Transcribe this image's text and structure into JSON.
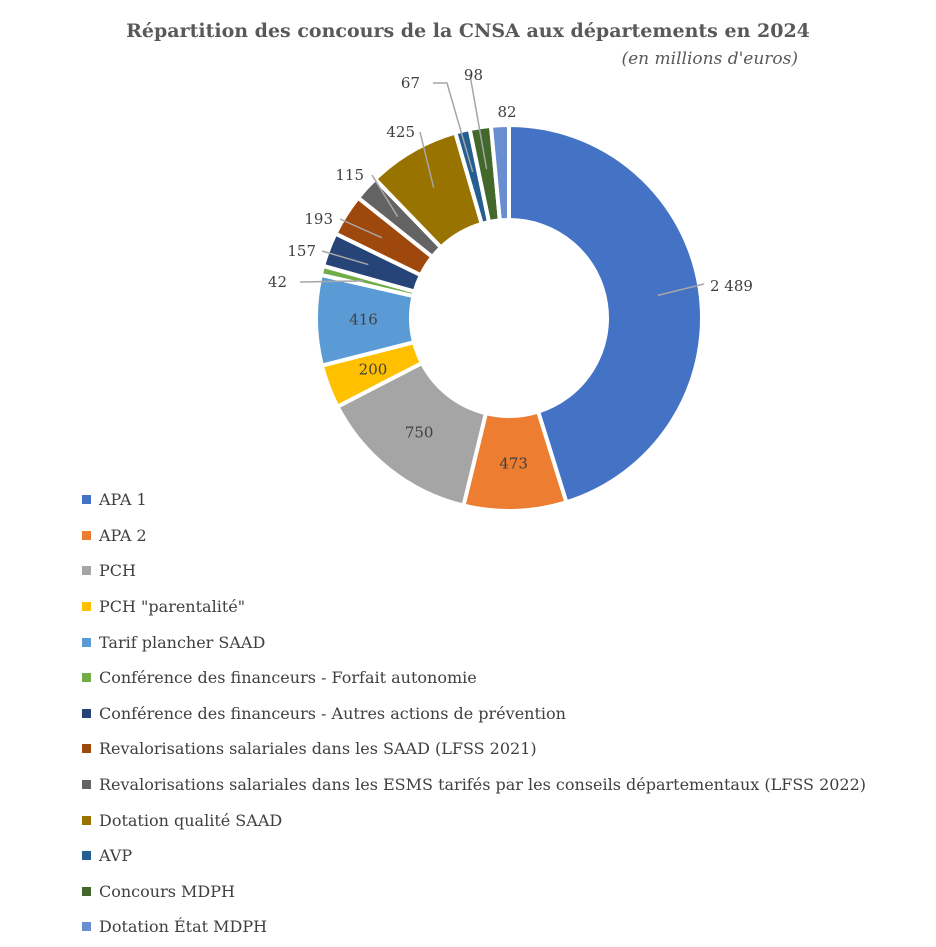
{
  "chart_data": {
    "type": "pie",
    "variant": "doughnut",
    "title": "Répartition des concours de la CNSA aux départements en 2024",
    "subtitle": "(en millions d'euros)",
    "legend_position": "bottom-left",
    "slices": [
      {
        "name": "APA 1",
        "value": 2489,
        "label": "2 489",
        "color": "#4472C4"
      },
      {
        "name": "APA 2",
        "value": 473,
        "label": "473",
        "color": "#ED7D31"
      },
      {
        "name": "PCH",
        "value": 750,
        "label": "750",
        "color": "#A5A5A5"
      },
      {
        "name": "PCH \"parentalité\"",
        "value": 200,
        "label": "200",
        "color": "#FFC000"
      },
      {
        "name": "Tarif plancher SAAD",
        "value": 416,
        "label": "416",
        "color": "#5B9BD5"
      },
      {
        "name": "Conférence des financeurs - Forfait autonomie",
        "value": 42,
        "label": "42",
        "color": "#70AD47"
      },
      {
        "name": "Conférence des financeurs - Autres actions de prévention",
        "value": 157,
        "label": "157",
        "color": "#264478"
      },
      {
        "name": "Revalorisations salariales dans les SAAD (LFSS 2021)",
        "value": 193,
        "label": "193",
        "color": "#9E480E"
      },
      {
        "name": "Revalorisations salariales dans les ESMS tarifés par les conseils départementaux (LFSS 2022)",
        "value": 115,
        "label": "115",
        "color": "#636363"
      },
      {
        "name": "Dotation qualité SAAD",
        "value": 425,
        "label": "425",
        "color": "#997300"
      },
      {
        "name": "AVP",
        "value": 67,
        "label": "67",
        "color": "#255E91"
      },
      {
        "name": "Concours MDPH",
        "value": 98,
        "label": "98",
        "color": "#43682B"
      },
      {
        "name": "Dotation État MDPH",
        "value": 82,
        "label": "82",
        "color": "#698ED0"
      }
    ]
  }
}
